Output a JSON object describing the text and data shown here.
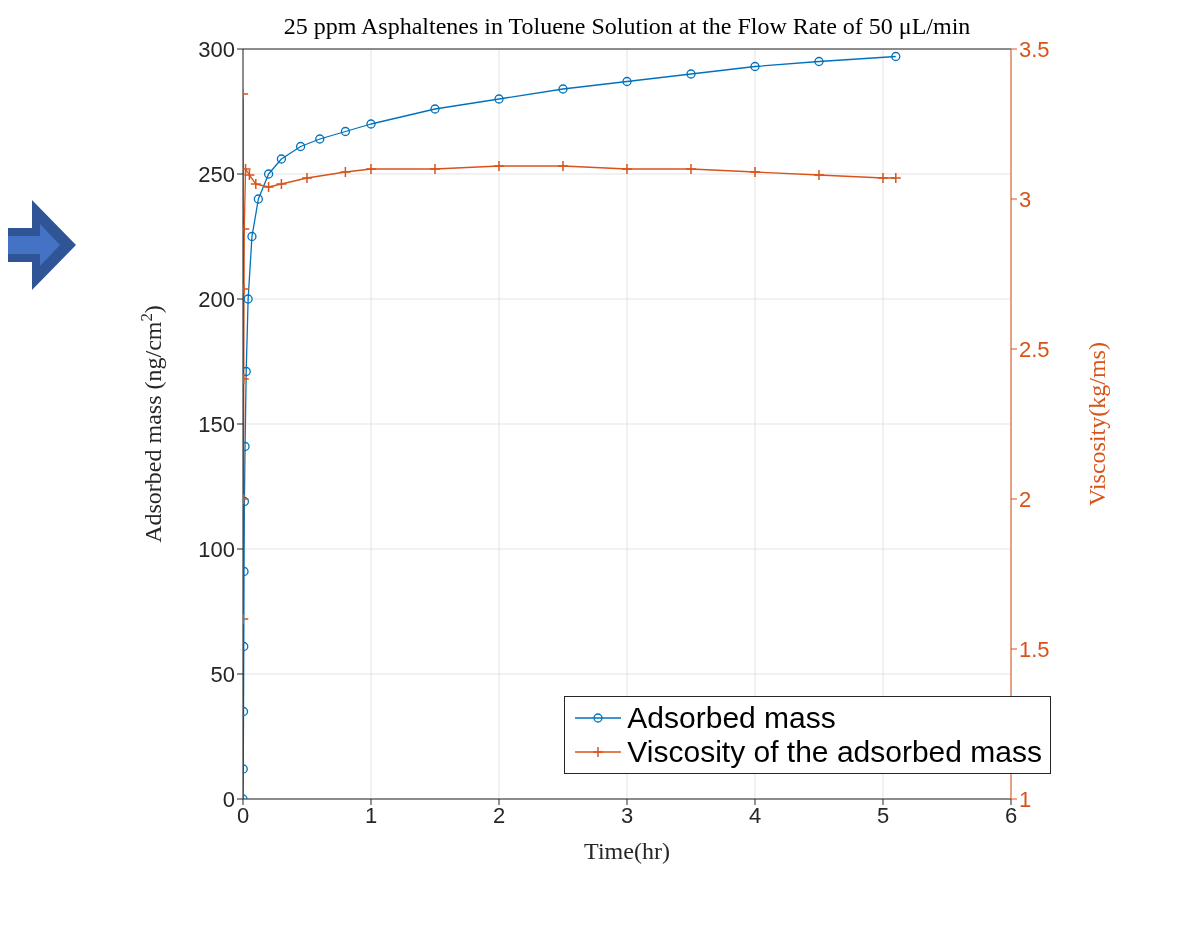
{
  "chart_data": {
    "type": "line",
    "title": "25 ppm Asphaltenes in Toluene Solution at the Flow Rate of 50 μL/min",
    "xlabel": "Time(hr)",
    "ylabel": "Adsorbed mass (ng/cm$^{2}$)",
    "y2label": "Viscosity(kg/ms)",
    "xlim": [
      0,
      6
    ],
    "xticks": [
      0,
      1,
      2,
      3,
      4,
      5,
      6
    ],
    "ylim": [
      0,
      300
    ],
    "yticks": [
      0,
      50,
      100,
      150,
      200,
      250,
      300
    ],
    "y2lim": [
      1,
      3.5
    ],
    "y2ticks": [
      1,
      1.5,
      2,
      2.5,
      3,
      3.5
    ],
    "grid": true,
    "legend": "bottom right",
    "series": [
      {
        "name": "Adsorbed mass",
        "color": "#0072bd",
        "marker": "circle",
        "x": [
          0,
          0.002,
          0.004,
          0.006,
          0.008,
          0.011,
          0.016,
          0.025,
          0.04,
          0.07,
          0.12,
          0.2,
          0.3,
          0.45,
          0.6,
          0.8,
          1,
          1.5,
          2,
          2.5,
          3,
          3.5,
          4,
          4.5,
          5.1
        ],
        "values": [
          0,
          12,
          35,
          61,
          91,
          119,
          141,
          171,
          200,
          225,
          240,
          250,
          256,
          261,
          264,
          267,
          270,
          276,
          280,
          284,
          287,
          290,
          293,
          295,
          297
        ]
      },
      {
        "name": "Viscosity of the adsorbed mass",
        "color": "#d95319",
        "marker": "cross",
        "axis": "y2",
        "x": [
          0.001,
          0.002,
          0.004,
          0.006,
          0.008,
          0.01,
          0.02,
          0.05,
          0.1,
          0.2,
          0.3,
          0.5,
          0.8,
          1,
          1.5,
          2,
          2.5,
          3,
          3.5,
          4,
          4.5,
          5,
          5.1
        ],
        "values": [
          3.35,
          1.6,
          2,
          2.4,
          2.7,
          2.9,
          3.1,
          3.08,
          3.05,
          3.04,
          3.05,
          3.07,
          3.09,
          3.1,
          3.1,
          3.11,
          3.11,
          3.1,
          3.1,
          3.09,
          3.08,
          3.07,
          3.07
        ]
      }
    ]
  }
}
